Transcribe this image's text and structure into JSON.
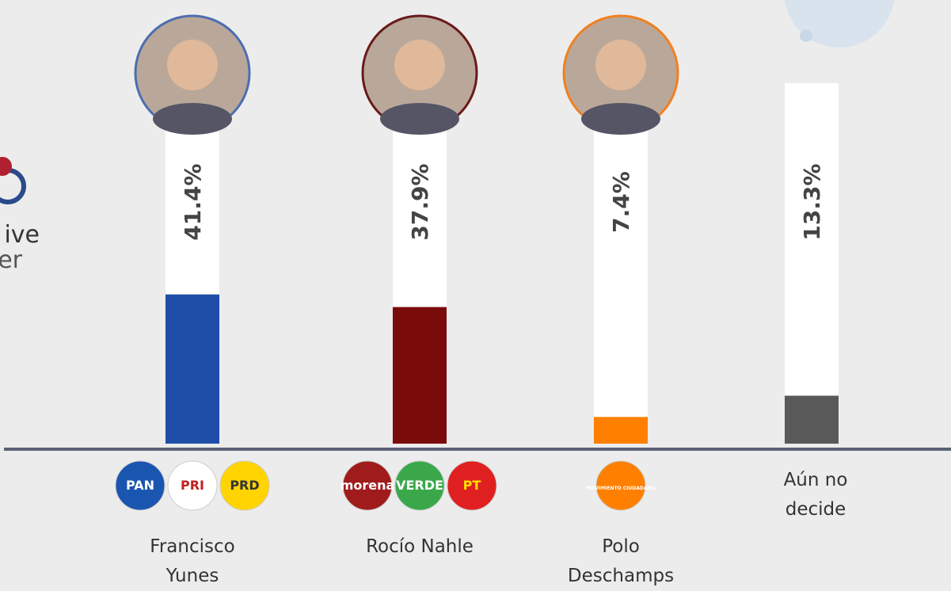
{
  "chart_data": {
    "type": "bar",
    "categories": [
      "Francisco Yunes",
      "Rocío Nahle",
      "Polo Deschamps",
      "Aún no decide"
    ],
    "values": [
      41.4,
      37.9,
      7.4,
      13.3
    ],
    "value_labels": [
      "41.4%",
      "37.9%",
      "7.4%",
      "13.3%"
    ],
    "colors": [
      "#1f4ea8",
      "#7a0b0b",
      "#ff8000",
      "#595959"
    ],
    "parties": [
      [
        "PAN",
        "PRI",
        "PRD"
      ],
      [
        "morena",
        "VERDE",
        "PT"
      ],
      [
        "MOVIMIENTO CIUDADANO"
      ],
      []
    ]
  },
  "logo_text": [
    "ive",
    "er"
  ]
}
